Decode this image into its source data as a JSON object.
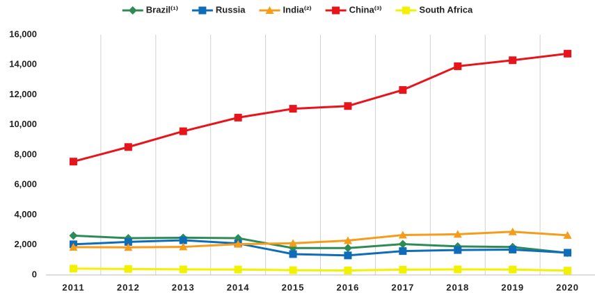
{
  "chart_data": {
    "type": "line",
    "categories": [
      "2011",
      "2012",
      "2013",
      "2014",
      "2015",
      "2016",
      "2017",
      "2018",
      "2019",
      "2020"
    ],
    "series": [
      {
        "name": "Brazil⁽¹⁾",
        "color": "#2e8b57",
        "marker": "diamond",
        "values": [
          2620,
          2450,
          2480,
          2450,
          1790,
          1790,
          2060,
          1900,
          1860,
          1470
        ]
      },
      {
        "name": "Russia",
        "color": "#0e6cb8",
        "marker": "square",
        "values": [
          2040,
          2200,
          2310,
          2100,
          1390,
          1300,
          1590,
          1660,
          1690,
          1480
        ]
      },
      {
        "name": "India⁽²⁾",
        "color": "#f59c1a",
        "marker": "triangle",
        "values": [
          1850,
          1840,
          1870,
          2050,
          2110,
          2290,
          2660,
          2710,
          2880,
          2640
        ]
      },
      {
        "name": "China⁽³⁾",
        "color": "#e8141b",
        "marker": "square",
        "values": [
          7550,
          8520,
          9570,
          10480,
          11070,
          11250,
          12320,
          13900,
          14300,
          14740
        ]
      },
      {
        "name": "South Africa",
        "color": "#f2f200",
        "marker": "square",
        "values": [
          420,
          400,
          370,
          360,
          320,
          300,
          350,
          370,
          360,
          290
        ]
      }
    ],
    "ylim": [
      0,
      16000
    ],
    "yticks": [
      0,
      {
        "value": 2000,
        "label": "2,000"
      },
      {
        "value": 4000,
        "label": "4,000"
      },
      {
        "value": 6000,
        "label": "6,000"
      },
      {
        "value": 8000,
        "label": "8,000"
      },
      {
        "value": 10000,
        "label": "10,000"
      },
      {
        "value": 12000,
        "label": "12,000"
      },
      {
        "value": 14000,
        "label": "14,000"
      },
      {
        "value": 16000,
        "label": "16,000"
      }
    ],
    "grid": "vertical",
    "legend": "top"
  }
}
